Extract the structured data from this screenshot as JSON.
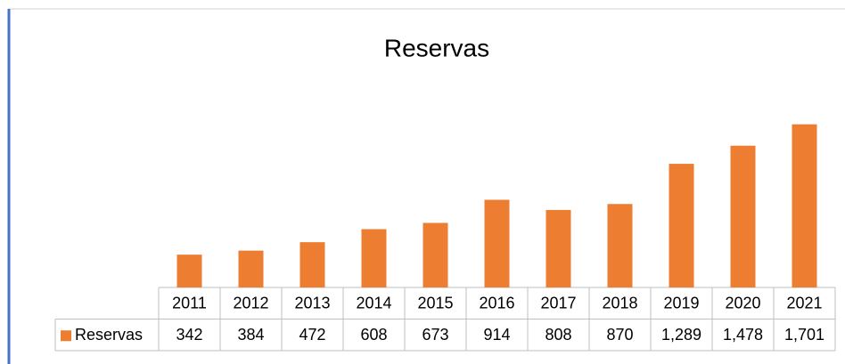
{
  "chart_data": {
    "type": "bar",
    "title": "Reservas",
    "categories": [
      "2011",
      "2012",
      "2013",
      "2014",
      "2015",
      "2016",
      "2017",
      "2018",
      "2019",
      "2020",
      "2021"
    ],
    "series": [
      {
        "name": "Reservas",
        "color": "#ED7D31",
        "values": [
          342,
          384,
          472,
          608,
          673,
          914,
          808,
          870,
          1289,
          1478,
          1701
        ],
        "value_labels": [
          "342",
          "384",
          "472",
          "608",
          "673",
          "914",
          "808",
          "870",
          "1,289",
          "1,478",
          "1,701"
        ]
      }
    ],
    "ylim": [
      0,
      1800
    ]
  }
}
